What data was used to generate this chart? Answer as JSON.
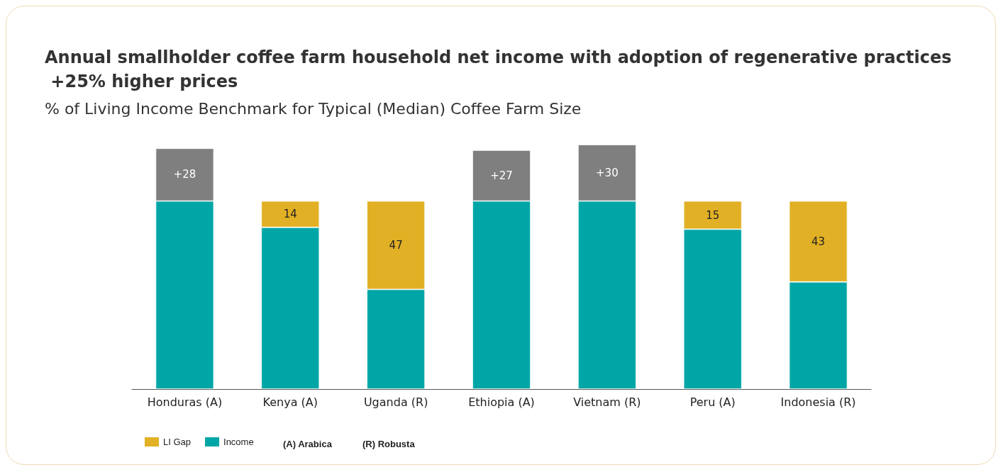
{
  "chart_data": {
    "type": "bar",
    "stacked": true,
    "title": "Annual smallholder coffee farm household net income with adoption of regenerative practices +25% higher prices",
    "subtitle": "% of Living Income Benchmark for Typical (Median) Coffee Farm Size",
    "categories": [
      "Honduras (A)",
      "Kenya (A)",
      "Uganda (R)",
      "Ethiopia (A)",
      "Vietnam (R)",
      "Peru (A)",
      "Indonesia (R)"
    ],
    "series": [
      {
        "name": "Income",
        "color": "#00a6a6",
        "values": [
          100,
          86,
          53,
          100,
          100,
          85,
          57
        ]
      },
      {
        "name": "LI Gap",
        "color": "#e2b025",
        "values": [
          null,
          14,
          47,
          null,
          null,
          15,
          43
        ],
        "value_labels": [
          null,
          "14",
          "47",
          null,
          null,
          "15",
          "43"
        ]
      },
      {
        "color": "#7f7f7f",
        "values": [
          28,
          null,
          null,
          27,
          30,
          null,
          null
        ],
        "value_labels": [
          "+28",
          null,
          null,
          "+27",
          "+30",
          null,
          null
        ]
      }
    ],
    "legend": "bottom left",
    "grid": false,
    "annotations": [
      "(A) Arabica",
      "(R) Robusta"
    ]
  }
}
